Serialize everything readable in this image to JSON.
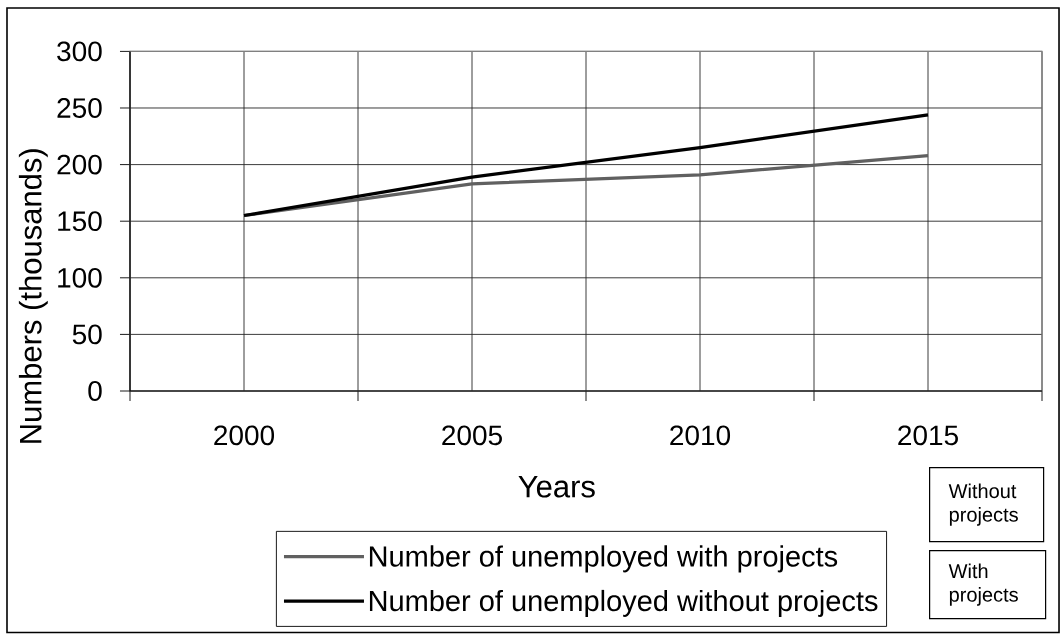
{
  "chart_data": {
    "type": "line",
    "categories": [
      "2000",
      "2005",
      "2010",
      "2015"
    ],
    "series": [
      {
        "name": "Number of unemployed with projects",
        "color": "#606060",
        "values": [
          155,
          183,
          191,
          208
        ]
      },
      {
        "name": "Number of unemployed without projects",
        "color": "#000000",
        "values": [
          155,
          189,
          215,
          244
        ]
      }
    ],
    "xlabel": "Years",
    "ylabel": "Numbers (thousands)",
    "ylim": [
      0,
      300
    ],
    "yticks": [
      0,
      50,
      100,
      150,
      200,
      250,
      300
    ],
    "grid": true,
    "legend": "bottom",
    "marker": "none",
    "annotations": [
      "Without projects",
      "With projects"
    ]
  }
}
